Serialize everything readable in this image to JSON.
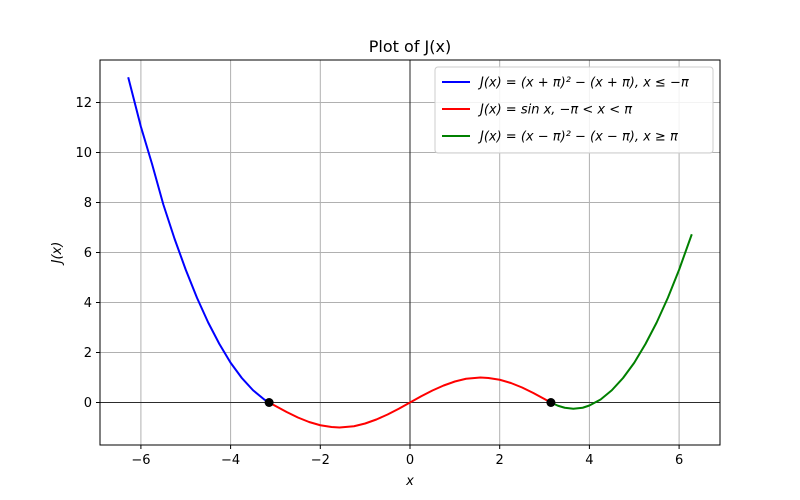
{
  "chart_data": {
    "type": "line",
    "title": "Plot of J(x)",
    "xlabel": "x",
    "ylabel": "J(x)",
    "xlim": [
      -6.912,
      6.912
    ],
    "ylim": [
      -1.7,
      13.7
    ],
    "x_ticks": [
      -6,
      -4,
      -2,
      0,
      2,
      4,
      6
    ],
    "x_tick_labels": [
      "−6",
      "−4",
      "−2",
      "0",
      "2",
      "4",
      "6"
    ],
    "y_ticks": [
      0,
      2,
      4,
      6,
      8,
      10,
      12
    ],
    "y_tick_labels": [
      "0",
      "2",
      "4",
      "6",
      "8",
      "10",
      "12"
    ],
    "grid": true,
    "reference_lines": {
      "x": 0,
      "y": 0
    },
    "legend_position": "upper right",
    "series": [
      {
        "name": "J(x) = (x + π)² − (x + π),    x ≤ −π",
        "color": "#0000ff",
        "x": [
          -6.283,
          -6.0,
          -5.75,
          -5.5,
          -5.25,
          -5.0,
          -4.75,
          -4.5,
          -4.25,
          -4.0,
          -3.75,
          -3.5,
          -3.25,
          -3.1416
        ],
        "y": [
          13.01,
          11.03,
          9.53,
          7.92,
          6.55,
          5.31,
          4.19,
          3.2,
          2.34,
          1.59,
          0.98,
          0.49,
          0.12,
          0.0
        ]
      },
      {
        "name": "J(x) = sin x,    −π < x < π",
        "color": "#ff0000",
        "x": [
          -3.1416,
          -2.75,
          -2.5,
          -2.25,
          -2.0,
          -1.75,
          -1.5708,
          -1.25,
          -1.0,
          -0.75,
          -0.5,
          -0.25,
          0.0,
          0.25,
          0.5,
          0.75,
          1.0,
          1.25,
          1.5708,
          1.75,
          2.0,
          2.25,
          2.5,
          2.75,
          3.1416
        ],
        "y": [
          0.0,
          -0.38,
          -0.6,
          -0.78,
          -0.91,
          -0.98,
          -1.0,
          -0.95,
          -0.84,
          -0.68,
          -0.48,
          -0.25,
          0.0,
          0.25,
          0.48,
          0.68,
          0.84,
          0.95,
          1.0,
          0.98,
          0.91,
          0.78,
          0.6,
          0.38,
          0.0
        ]
      },
      {
        "name": "J(x) = (x − π)² − (x − π),    x ≥ π",
        "color": "#008000",
        "x": [
          3.1416,
          3.3,
          3.45,
          3.6416,
          3.85,
          4.0,
          4.25,
          4.5,
          4.75,
          5.0,
          5.25,
          5.5,
          5.75,
          6.0,
          6.283
        ],
        "y": [
          0.0,
          -0.13,
          -0.21,
          -0.25,
          -0.21,
          -0.12,
          0.12,
          0.49,
          0.98,
          1.59,
          2.34,
          3.2,
          4.19,
          5.31,
          6.73
        ]
      }
    ],
    "markers": [
      {
        "x": -3.1416,
        "y": 0.0,
        "color": "#000000"
      },
      {
        "x": 3.1416,
        "y": 0.0,
        "color": "#000000"
      }
    ]
  }
}
